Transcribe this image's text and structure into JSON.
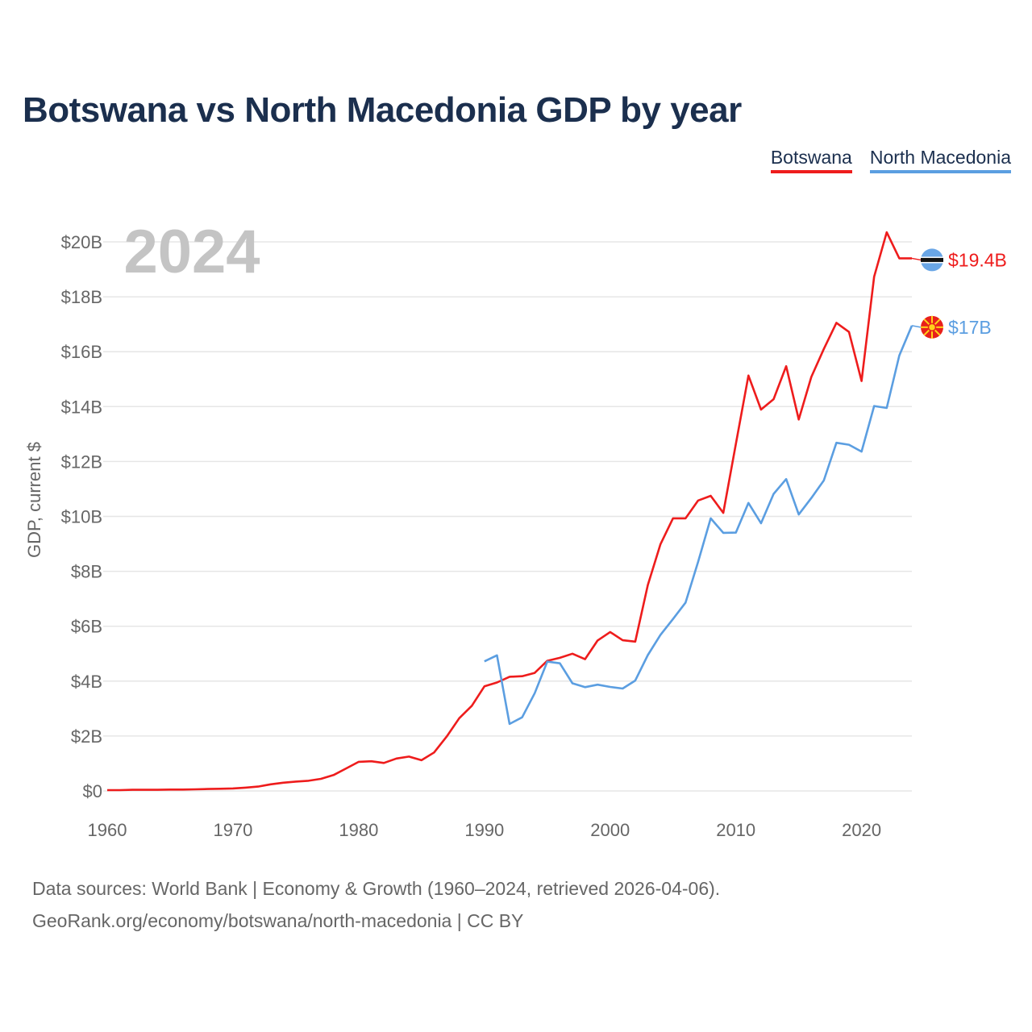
{
  "title": "Botswana vs North Macedonia GDP by year",
  "legend": [
    {
      "name": "Botswana",
      "color": "#ee1c1c"
    },
    {
      "name": "North Macedonia",
      "color": "#5b9ee1"
    }
  ],
  "year_label": "2024",
  "footer": {
    "line1": "Data sources: World Bank | Economy & Growth (1960–2024, retrieved 2026-04-06).",
    "line2": "GeoRank.org/economy/botswana/north-macedonia | CC BY"
  },
  "chart_data": {
    "type": "line",
    "title": "Botswana vs North Macedonia GDP by year",
    "xlabel": "",
    "ylabel": "GDP, current $",
    "xlim": [
      1960,
      2024
    ],
    "ylim": [
      0,
      20
    ],
    "y_unit": "billions of current US$",
    "x_ticks": [
      1960,
      1970,
      1980,
      1990,
      2000,
      2010,
      2020
    ],
    "x_tick_labels": [
      "1960",
      "1970",
      "1980",
      "1990",
      "2000",
      "2010",
      "2020"
    ],
    "y_ticks": [
      0,
      2,
      4,
      6,
      8,
      10,
      12,
      14,
      16,
      18,
      20
    ],
    "y_tick_labels": [
      "$0",
      "$2B",
      "$4B",
      "$6B",
      "$8B",
      "$10B",
      "$12B",
      "$14B",
      "$16B",
      "$18B",
      "$20B"
    ],
    "grid": true,
    "legend_position": "top-right",
    "series": [
      {
        "name": "Botswana",
        "color": "#ee1c1c",
        "end_label": "$19.4B",
        "x": [
          1960,
          1961,
          1962,
          1963,
          1964,
          1965,
          1966,
          1967,
          1968,
          1969,
          1970,
          1971,
          1972,
          1973,
          1974,
          1975,
          1976,
          1977,
          1978,
          1979,
          1980,
          1981,
          1982,
          1983,
          1984,
          1985,
          1986,
          1987,
          1988,
          1989,
          1990,
          1991,
          1992,
          1993,
          1994,
          1995,
          1996,
          1997,
          1998,
          1999,
          2000,
          2001,
          2002,
          2003,
          2004,
          2005,
          2006,
          2007,
          2008,
          2009,
          2010,
          2011,
          2012,
          2013,
          2014,
          2015,
          2016,
          2017,
          2018,
          2019,
          2020,
          2021,
          2022,
          2023,
          2024
        ],
        "values": [
          0.03,
          0.03,
          0.04,
          0.04,
          0.04,
          0.05,
          0.05,
          0.06,
          0.07,
          0.08,
          0.09,
          0.12,
          0.16,
          0.24,
          0.3,
          0.34,
          0.37,
          0.44,
          0.58,
          0.82,
          1.06,
          1.08,
          1.02,
          1.18,
          1.25,
          1.12,
          1.4,
          1.98,
          2.65,
          3.1,
          3.81,
          3.95,
          4.16,
          4.18,
          4.3,
          4.74,
          4.85,
          5.0,
          4.8,
          5.48,
          5.79,
          5.49,
          5.44,
          7.5,
          8.98,
          9.93,
          9.93,
          10.58,
          10.75,
          10.13,
          12.64,
          15.13,
          13.89,
          14.27,
          15.47,
          13.53,
          15.08,
          16.1,
          17.05,
          16.72,
          14.93,
          18.73,
          20.35,
          19.4,
          19.4
        ]
      },
      {
        "name": "North Macedonia",
        "color": "#5b9ee1",
        "end_label": "$17B",
        "x": [
          1990,
          1991,
          1992,
          1993,
          1994,
          1995,
          1996,
          1997,
          1998,
          1999,
          2000,
          2001,
          2002,
          2003,
          2004,
          2005,
          2006,
          2007,
          2008,
          2009,
          2010,
          2011,
          2012,
          2013,
          2014,
          2015,
          2016,
          2017,
          2018,
          2019,
          2020,
          2021,
          2022,
          2023,
          2024
        ],
        "values": [
          4.72,
          4.94,
          2.44,
          2.68,
          3.56,
          4.71,
          4.65,
          3.92,
          3.78,
          3.87,
          3.79,
          3.73,
          4.02,
          4.95,
          5.68,
          6.26,
          6.86,
          8.35,
          9.93,
          9.4,
          9.41,
          10.49,
          9.75,
          10.82,
          11.36,
          10.07,
          10.67,
          11.31,
          12.68,
          12.61,
          12.36,
          14.02,
          13.95,
          15.86,
          16.95
        ]
      }
    ]
  }
}
